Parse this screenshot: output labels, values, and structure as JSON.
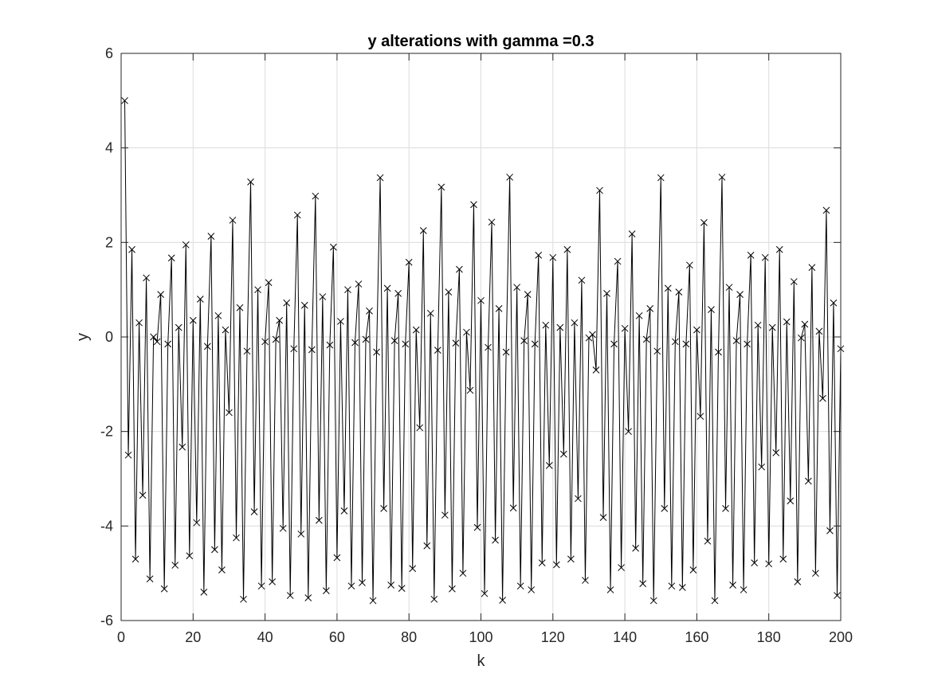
{
  "chart_data": {
    "type": "line",
    "title": "y alterations with gamma =0.3",
    "xlabel": "k",
    "ylabel": "y",
    "xlim": [
      0,
      200
    ],
    "ylim": [
      -6,
      6
    ],
    "xticks": [
      "0",
      "20",
      "40",
      "60",
      "80",
      "100",
      "120",
      "140",
      "160",
      "180",
      "200"
    ],
    "yticks": [
      "-6",
      "-4",
      "-2",
      "0",
      "2",
      "4",
      "6"
    ],
    "grid": true,
    "marker": "x",
    "line_color": "#000000",
    "x_start": 1,
    "x_step": 1,
    "y": [
      5.0,
      -2.5,
      1.85,
      -4.7,
      0.3,
      -3.35,
      1.25,
      -5.12,
      0.0,
      -0.1,
      0.9,
      -5.33,
      -0.15,
      1.67,
      -4.83,
      0.2,
      -2.33,
      1.95,
      -4.63,
      0.35,
      -3.93,
      0.8,
      -5.4,
      -0.2,
      2.13,
      -4.5,
      0.45,
      -4.93,
      0.15,
      -1.6,
      2.47,
      -4.25,
      0.62,
      -5.55,
      -0.3,
      3.28,
      -3.7,
      1.0,
      -5.27,
      -0.1,
      1.15,
      -5.18,
      -0.05,
      0.35,
      -4.05,
      0.72,
      -5.47,
      -0.25,
      2.58,
      -4.17,
      0.67,
      -5.52,
      -0.27,
      2.98,
      -3.88,
      0.85,
      -5.37,
      -0.17,
      1.9,
      -4.67,
      0.33,
      -3.68,
      1.0,
      -5.27,
      -0.12,
      1.12,
      -5.2,
      -0.05,
      0.55,
      -5.58,
      -0.32,
      3.37,
      -3.63,
      1.03,
      -5.25,
      -0.08,
      0.92,
      -5.32,
      -0.15,
      1.58,
      -4.9,
      0.15,
      -1.92,
      2.25,
      -4.42,
      0.5,
      -5.55,
      -0.28,
      3.17,
      -3.77,
      0.95,
      -5.33,
      -0.13,
      1.43,
      -5.0,
      0.1,
      -1.13,
      2.8,
      -4.03,
      0.77,
      -5.43,
      -0.22,
      2.43,
      -4.3,
      0.6,
      -5.57,
      -0.32,
      3.38,
      -3.62,
      1.05,
      -5.27,
      -0.08,
      0.9,
      -5.35,
      -0.15,
      1.73,
      -4.78,
      0.25,
      -2.72,
      1.68,
      -4.82,
      0.2,
      -2.48,
      1.85,
      -4.7,
      0.3,
      -3.42,
      1.2,
      -5.15,
      -0.02,
      0.05,
      -0.7,
      3.1,
      -3.82,
      0.92,
      -5.35,
      -0.15,
      1.6,
      -4.88,
      0.18,
      -2.0,
      2.18,
      -4.47,
      0.45,
      -5.22,
      -0.05,
      0.6,
      -5.58,
      -0.3,
      3.37,
      -3.63,
      1.03,
      -5.27,
      -0.1,
      0.95,
      -5.3,
      -0.15,
      1.52,
      -4.93,
      0.15,
      -1.68,
      2.42,
      -4.32,
      0.58,
      -5.58,
      -0.32,
      3.38,
      -3.63,
      1.05,
      -5.25,
      -0.08,
      0.9,
      -5.35,
      -0.15,
      1.73,
      -4.78,
      0.25,
      -2.75,
      1.68,
      -4.8,
      0.2,
      -2.45,
      1.85,
      -4.7,
      0.32,
      -3.47,
      1.17,
      -5.18,
      -0.02,
      0.27,
      -3.05,
      1.47,
      -5.0,
      0.12,
      -1.3,
      2.68,
      -4.1,
      0.72,
      -5.47,
      -0.25
    ]
  }
}
